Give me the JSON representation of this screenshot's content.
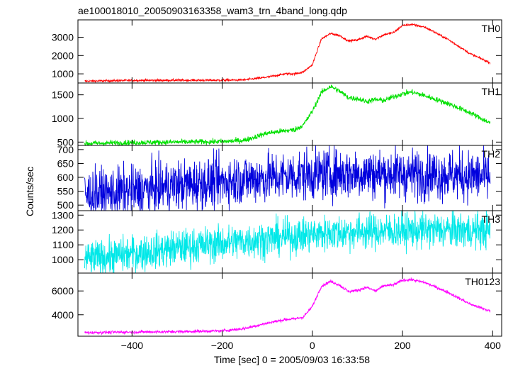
{
  "chart_data": {
    "type": "line",
    "title": "ae100018010_20050903163358_wam3_trn_4band_long.qdp",
    "xlabel": "Time [sec] 0 = 2005/09/03 16:33:58",
    "ylabel": "Counts/sec",
    "xlim": [
      -520,
      420
    ],
    "x_ticks": [
      "−400",
      "−200",
      "0",
      "200",
      "400"
    ],
    "x_tick_values": [
      -400,
      -200,
      0,
      200,
      400
    ],
    "grid": false,
    "panels": [
      {
        "name": "TH0",
        "color": "#ff0000",
        "noise": 30,
        "ylim": [
          500,
          3950
        ],
        "y_ticks": [
          1000,
          2000,
          3000
        ],
        "y_tick_labels": [
          "1000",
          "2000",
          "3000"
        ],
        "x": [
          -505,
          -400,
          -300,
          -200,
          -150,
          -100,
          -60,
          -40,
          -20,
          0,
          20,
          40,
          60,
          80,
          100,
          120,
          140,
          160,
          180,
          200,
          220,
          250,
          300,
          350,
          395
        ],
        "y": [
          600,
          640,
          650,
          650,
          670,
          820,
          1000,
          1000,
          1100,
          1500,
          2900,
          3200,
          3100,
          2800,
          2850,
          3050,
          2900,
          3150,
          3250,
          3650,
          3700,
          3550,
          2900,
          2100,
          1600
        ]
      },
      {
        "name": "TH1",
        "color": "#00e000",
        "noise": 28,
        "ylim": [
          430,
          1750
        ],
        "y_ticks": [
          500,
          1000,
          1500
        ],
        "y_tick_labels": [
          "500",
          "1000",
          "1500"
        ],
        "x": [
          -505,
          -400,
          -300,
          -200,
          -150,
          -100,
          -60,
          -40,
          -20,
          0,
          20,
          40,
          60,
          80,
          100,
          120,
          140,
          160,
          180,
          200,
          220,
          250,
          300,
          350,
          395
        ],
        "y": [
          470,
          490,
          500,
          510,
          540,
          690,
          740,
          760,
          860,
          1150,
          1550,
          1680,
          1580,
          1440,
          1420,
          1360,
          1400,
          1380,
          1460,
          1520,
          1560,
          1480,
          1320,
          1120,
          900
        ]
      },
      {
        "name": "TH2",
        "color": "#0000dd",
        "noise": 45,
        "ylim": [
          480,
          715
        ],
        "y_ticks": [
          500,
          550,
          600,
          650,
          700
        ],
        "y_tick_labels": [
          "500",
          "550",
          "600",
          "650",
          "700"
        ],
        "x": [
          -505,
          -400,
          -300,
          -200,
          -100,
          0,
          100,
          200,
          300,
          395
        ],
        "y": [
          535,
          550,
          570,
          585,
          600,
          610,
          615,
          612,
          610,
          600
        ]
      },
      {
        "name": "TH3",
        "color": "#00e8e8",
        "noise": 60,
        "ylim": [
          910,
          1330
        ],
        "y_ticks": [
          1000,
          1100,
          1200,
          1300
        ],
        "y_tick_labels": [
          "1000",
          "1100",
          "1200",
          "1300"
        ],
        "x": [
          -505,
          -400,
          -300,
          -200,
          -100,
          0,
          100,
          200,
          300,
          395
        ],
        "y": [
          1000,
          1040,
          1080,
          1110,
          1140,
          1170,
          1190,
          1195,
          1200,
          1195
        ]
      },
      {
        "name": "TH0123",
        "color": "#ff00ff",
        "noise": 60,
        "ylim": [
          2200,
          7500
        ],
        "y_ticks": [
          4000,
          6000
        ],
        "y_tick_labels": [
          "4000",
          "6000"
        ],
        "x": [
          -505,
          -400,
          -300,
          -200,
          -150,
          -100,
          -60,
          -40,
          -20,
          0,
          20,
          40,
          60,
          80,
          100,
          120,
          140,
          160,
          180,
          200,
          220,
          250,
          300,
          350,
          395
        ],
        "y": [
          2500,
          2550,
          2580,
          2650,
          2850,
          3300,
          3600,
          3650,
          3800,
          4700,
          6400,
          6800,
          6500,
          5950,
          6050,
          6300,
          6000,
          6450,
          6500,
          6900,
          6950,
          6700,
          5900,
          4900,
          4300
        ]
      }
    ]
  }
}
